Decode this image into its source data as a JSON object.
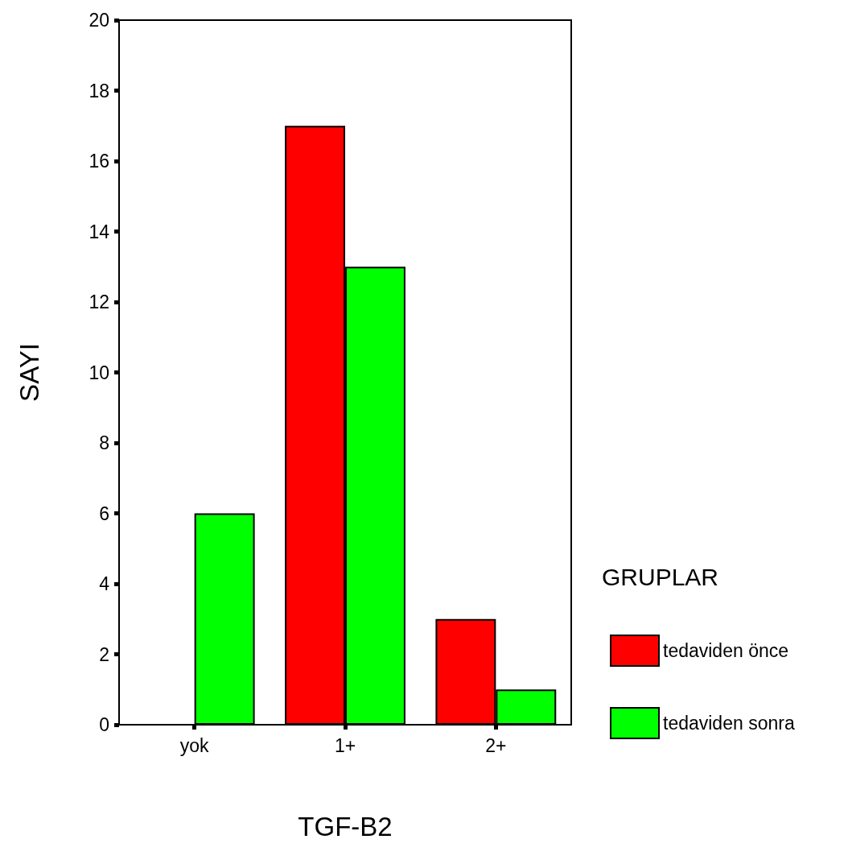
{
  "chart_data": {
    "type": "bar",
    "xlabel": "TGF-B2",
    "ylabel": "SAYI",
    "legend_title": "GRUPLAR",
    "categories": [
      "yok",
      "1+",
      "2+"
    ],
    "series": [
      {
        "name": "tedaviden önce",
        "color": "#ff0000",
        "values": [
          0,
          17,
          3
        ]
      },
      {
        "name": "tedaviden sonra",
        "color": "#00ff00",
        "values": [
          6,
          13,
          1
        ]
      }
    ],
    "ylim": [
      0,
      20
    ],
    "yticks": [
      0,
      2,
      4,
      6,
      8,
      10,
      12,
      14,
      16,
      18,
      20
    ],
    "grid": false,
    "legend": "right"
  }
}
